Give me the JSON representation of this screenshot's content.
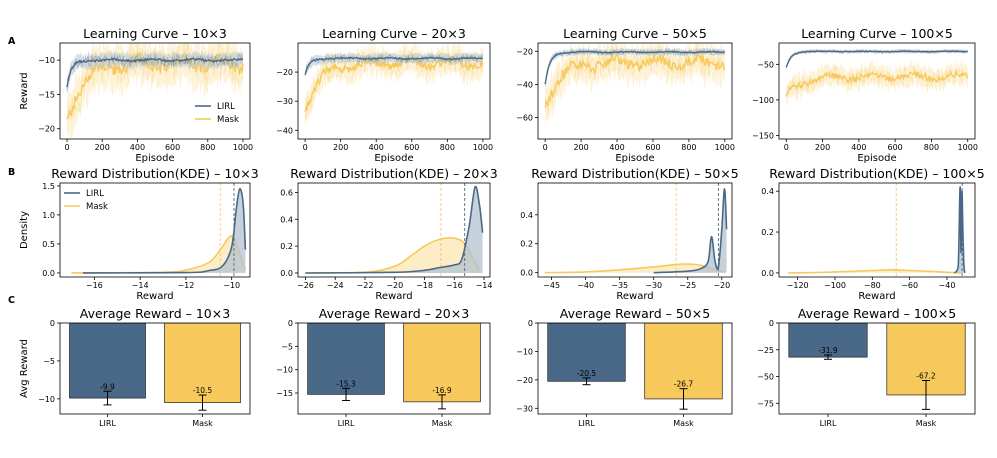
{
  "row_labels": [
    "A",
    "B",
    "C"
  ],
  "colors": {
    "LIRL": "#4a6887",
    "Mask": "#f7c95c",
    "LIRL_fill": "#b4c2cf",
    "Mask_fill": "#fbe7b4"
  },
  "chart_data": [
    {
      "id": "A1",
      "row": 0,
      "col": 0,
      "type": "line",
      "title": "Learning Curve – 10×3",
      "xlabel": "Episode",
      "ylabel": "Reward",
      "xlim": [
        -40,
        1040
      ],
      "ylim": [
        -21.5,
        -7.5
      ],
      "xticks": [
        0,
        200,
        400,
        600,
        800,
        1000
      ],
      "yticks": [
        -20,
        -15,
        -10
      ],
      "legend": "lower-right",
      "series": [
        {
          "name": "LIRL",
          "start": -14.0,
          "final": -10.0,
          "spread": 1.0
        },
        {
          "name": "Mask",
          "start": -19.0,
          "final": -10.5,
          "spread": 3.0
        }
      ]
    },
    {
      "id": "A2",
      "row": 0,
      "col": 1,
      "type": "line",
      "title": "Learning Curve – 20×3",
      "xlabel": "Episode",
      "ylabel": "",
      "xlim": [
        -40,
        1040
      ],
      "ylim": [
        -43,
        -10
      ],
      "xticks": [
        0,
        200,
        400,
        600,
        800,
        1000
      ],
      "yticks": [
        -40,
        -30,
        -20
      ],
      "series": [
        {
          "name": "LIRL",
          "start": -21.0,
          "final": -15.3,
          "spread": 1.5
        },
        {
          "name": "Mask",
          "start": -33.0,
          "final": -16.9,
          "spread": 4.5
        }
      ]
    },
    {
      "id": "A3",
      "row": 0,
      "col": 2,
      "type": "line",
      "title": "Learning Curve – 50×5",
      "xlabel": "Episode",
      "ylabel": "",
      "xlim": [
        -40,
        1040
      ],
      "ylim": [
        -73,
        -15
      ],
      "xticks": [
        0,
        200,
        400,
        600,
        800,
        1000
      ],
      "yticks": [
        -60,
        -40,
        -20
      ],
      "series": [
        {
          "name": "LIRL",
          "start": -40.0,
          "final": -20.5,
          "spread": 1.8
        },
        {
          "name": "Mask",
          "start": -52.0,
          "final": -26.7,
          "spread": 10.0
        }
      ]
    },
    {
      "id": "A4",
      "row": 0,
      "col": 3,
      "type": "line",
      "title": "Learning Curve – 100×5",
      "xlabel": "Episode",
      "ylabel": "",
      "xlim": [
        -40,
        1040
      ],
      "ylim": [
        -155,
        -20
      ],
      "xticks": [
        0,
        200,
        400,
        600,
        800,
        1000
      ],
      "yticks": [
        -150,
        -100,
        -50
      ],
      "series": [
        {
          "name": "LIRL",
          "start": -55.0,
          "final": -31.9,
          "spread": 2.5
        },
        {
          "name": "Mask",
          "start": -95.0,
          "final": -67.2,
          "spread": 14.0
        }
      ]
    },
    {
      "id": "B1",
      "row": 1,
      "col": 0,
      "type": "area",
      "title": "Reward Distribution(KDE) – 10×3",
      "xlabel": "Reward",
      "ylabel": "Density",
      "xlim": [
        -17.5,
        -9.2
      ],
      "ylim": [
        -0.07,
        1.55
      ],
      "xticks": [
        -16,
        -14,
        -12,
        -10
      ],
      "yticks": [
        0.0,
        0.5,
        1.0,
        1.5
      ],
      "legend": "upper-left",
      "series": [
        {
          "name": "LIRL",
          "mean": -9.9,
          "points": [
            [
              -16.5,
              0
            ],
            [
              -12.0,
              0.005
            ],
            [
              -11.0,
              0.04
            ],
            [
              -10.4,
              0.12
            ],
            [
              -10.0,
              0.45
            ],
            [
              -9.8,
              1.1
            ],
            [
              -9.65,
              1.45
            ],
            [
              -9.5,
              1.2
            ],
            [
              -9.4,
              0.4
            ]
          ]
        },
        {
          "name": "Mask",
          "mean": -10.5,
          "points": [
            [
              -17.0,
              0
            ],
            [
              -13.0,
              0.01
            ],
            [
              -12.0,
              0.05
            ],
            [
              -11.0,
              0.18
            ],
            [
              -10.5,
              0.4
            ],
            [
              -10.1,
              0.62
            ],
            [
              -9.9,
              0.6
            ],
            [
              -9.7,
              0.4
            ],
            [
              -9.5,
              0.15
            ],
            [
              -9.4,
              0.05
            ]
          ]
        }
      ]
    },
    {
      "id": "B2",
      "row": 1,
      "col": 1,
      "type": "area",
      "title": "Reward Distribution(KDE) – 20×3",
      "xlabel": "Reward",
      "ylabel": "",
      "xlim": [
        -26.5,
        -13.6
      ],
      "ylim": [
        -0.03,
        0.67
      ],
      "xticks": [
        -26,
        -24,
        -22,
        -20,
        -18,
        -16,
        -14
      ],
      "yticks": [
        0.0,
        0.2,
        0.4,
        0.6
      ],
      "series": [
        {
          "name": "LIRL",
          "mean": -15.3,
          "points": [
            [
              -26.0,
              0
            ],
            [
              -20.0,
              0.005
            ],
            [
              -18.0,
              0.02
            ],
            [
              -17.0,
              0.04
            ],
            [
              -16.0,
              0.06
            ],
            [
              -15.5,
              0.1
            ],
            [
              -15.0,
              0.35
            ],
            [
              -14.6,
              0.64
            ],
            [
              -14.3,
              0.5
            ],
            [
              -14.1,
              0.3
            ]
          ]
        },
        {
          "name": "Mask",
          "mean": -16.9,
          "points": [
            [
              -26.0,
              0
            ],
            [
              -22.0,
              0.005
            ],
            [
              -20.0,
              0.05
            ],
            [
              -19.0,
              0.12
            ],
            [
              -18.0,
              0.2
            ],
            [
              -17.0,
              0.25
            ],
            [
              -16.0,
              0.26
            ],
            [
              -15.3,
              0.22
            ],
            [
              -14.8,
              0.12
            ],
            [
              -14.3,
              0.02
            ]
          ]
        }
      ]
    },
    {
      "id": "B3",
      "row": 1,
      "col": 2,
      "type": "area",
      "title": "Reward Distribution(KDE) – 50×5",
      "xlabel": "Reward",
      "ylabel": "",
      "xlim": [
        -47,
        -18.5
      ],
      "ylim": [
        -0.03,
        0.62
      ],
      "xticks": [
        -45,
        -40,
        -35,
        -30,
        -25,
        -20
      ],
      "yticks": [
        0.0,
        0.2,
        0.4
      ],
      "series": [
        {
          "name": "LIRL",
          "mean": -20.5,
          "points": [
            [
              -30.0,
              0
            ],
            [
              -25.0,
              0.01
            ],
            [
              -23.0,
              0.03
            ],
            [
              -22.0,
              0.08
            ],
            [
              -21.5,
              0.25
            ],
            [
              -21.0,
              0.08
            ],
            [
              -20.5,
              0.04
            ],
            [
              -20.0,
              0.3
            ],
            [
              -19.6,
              0.58
            ],
            [
              -19.3,
              0.3
            ]
          ]
        },
        {
          "name": "Mask",
          "mean": -26.7,
          "points": [
            [
              -46.0,
              0
            ],
            [
              -40.0,
              0.005
            ],
            [
              -35.0,
              0.02
            ],
            [
              -30.0,
              0.04
            ],
            [
              -27.0,
              0.055
            ],
            [
              -25.0,
              0.06
            ],
            [
              -23.0,
              0.05
            ],
            [
              -21.0,
              0.02
            ],
            [
              -19.5,
              0.005
            ]
          ]
        }
      ]
    },
    {
      "id": "B4",
      "row": 1,
      "col": 3,
      "type": "area",
      "title": "Reward Distribution(KDE) – 100×5",
      "xlabel": "Reward",
      "ylabel": "",
      "xlim": [
        -130,
        -25
      ],
      "ylim": [
        -0.02,
        0.44
      ],
      "xticks": [
        -120,
        -100,
        -80,
        -60,
        -40
      ],
      "yticks": [
        0.0,
        0.2,
        0.4
      ],
      "series": [
        {
          "name": "LIRL",
          "mean": -31.9,
          "points": [
            [
              -36.0,
              0
            ],
            [
              -34.0,
              0.03
            ],
            [
              -33.0,
              0.42
            ],
            [
              -32.5,
              0.1
            ],
            [
              -32.0,
              0.4
            ],
            [
              -31.5,
              0.2
            ],
            [
              -31.0,
              0.05
            ],
            [
              -30.5,
              0
            ]
          ]
        },
        {
          "name": "Mask",
          "mean": -67.2,
          "points": [
            [
              -125.0,
              0
            ],
            [
              -110.0,
              0.002
            ],
            [
              -95.0,
              0.006
            ],
            [
              -80.0,
              0.012
            ],
            [
              -70.0,
              0.015
            ],
            [
              -60.0,
              0.012
            ],
            [
              -50.0,
              0.008
            ],
            [
              -40.0,
              0.003
            ],
            [
              -32.0,
              0
            ]
          ]
        }
      ]
    },
    {
      "id": "C1",
      "row": 2,
      "col": 0,
      "type": "bar",
      "title": "Average Reward – 10×3",
      "xlabel": "",
      "ylabel": "Avg Reward",
      "categories": [
        "LIRL",
        "Mask"
      ],
      "values": [
        -9.9,
        -10.5
      ],
      "errors": [
        0.9,
        1.0
      ],
      "value_labels": [
        "-9.9",
        "-10.5"
      ],
      "ylim": [
        -12.0,
        0
      ],
      "yticks": [
        -10,
        -5,
        0
      ]
    },
    {
      "id": "C2",
      "row": 2,
      "col": 1,
      "type": "bar",
      "title": "Average Reward – 20×3",
      "xlabel": "",
      "ylabel": "",
      "categories": [
        "LIRL",
        "Mask"
      ],
      "values": [
        -15.3,
        -16.9
      ],
      "errors": [
        1.3,
        1.5
      ],
      "value_labels": [
        "-15.3",
        "-16.9"
      ],
      "ylim": [
        -19.5,
        0
      ],
      "yticks": [
        -15,
        -10,
        -5,
        0
      ]
    },
    {
      "id": "C3",
      "row": 2,
      "col": 2,
      "type": "bar",
      "title": "Average Reward – 50×5",
      "xlabel": "",
      "ylabel": "",
      "categories": [
        "LIRL",
        "Mask"
      ],
      "values": [
        -20.5,
        -26.7
      ],
      "errors": [
        1.2,
        3.6
      ],
      "value_labels": [
        "-20.5",
        "-26.7"
      ],
      "ylim": [
        -32,
        0
      ],
      "yticks": [
        -30,
        -20,
        -10,
        0
      ]
    },
    {
      "id": "C4",
      "row": 2,
      "col": 3,
      "type": "bar",
      "title": "Average Reward – 100×5",
      "xlabel": "",
      "ylabel": "",
      "categories": [
        "LIRL",
        "Mask"
      ],
      "values": [
        -31.9,
        -67.2
      ],
      "errors": [
        2.0,
        13.5
      ],
      "value_labels": [
        "-31.9",
        "-67.2"
      ],
      "ylim": [
        -85,
        0
      ],
      "yticks": [
        -75,
        -50,
        -25,
        0
      ]
    }
  ]
}
